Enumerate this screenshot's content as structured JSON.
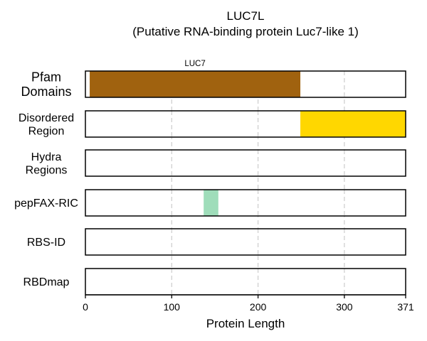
{
  "chart_data": {
    "type": "bar",
    "title": "LUC7L",
    "subtitle": "(Putative RNA-binding protein Luc7-like 1)",
    "xlabel": "Protein Length",
    "xlim": [
      0,
      371
    ],
    "xticks": [
      0,
      100,
      200,
      300,
      371
    ],
    "grid_x": [
      100,
      200,
      300
    ],
    "tracks": [
      {
        "label_lines": [
          "Pfam",
          "Domains"
        ],
        "segments": [
          {
            "start": 5,
            "end": 249,
            "label": "LUC7",
            "color": "#A0620F"
          }
        ]
      },
      {
        "label_lines": [
          "Disordered",
          "Region"
        ],
        "segments": [
          {
            "start": 249,
            "end": 371,
            "color": "#FFD700"
          }
        ]
      },
      {
        "label_lines": [
          "Hydra",
          "Regions"
        ],
        "segments": []
      },
      {
        "label_lines": [
          "pepFAX-RIC"
        ],
        "segments": [
          {
            "start": 137,
            "end": 154,
            "color": "#9FDDBA"
          }
        ]
      },
      {
        "label_lines": [
          "RBS-ID"
        ],
        "segments": []
      },
      {
        "label_lines": [
          "RBDmap"
        ],
        "segments": []
      }
    ]
  }
}
